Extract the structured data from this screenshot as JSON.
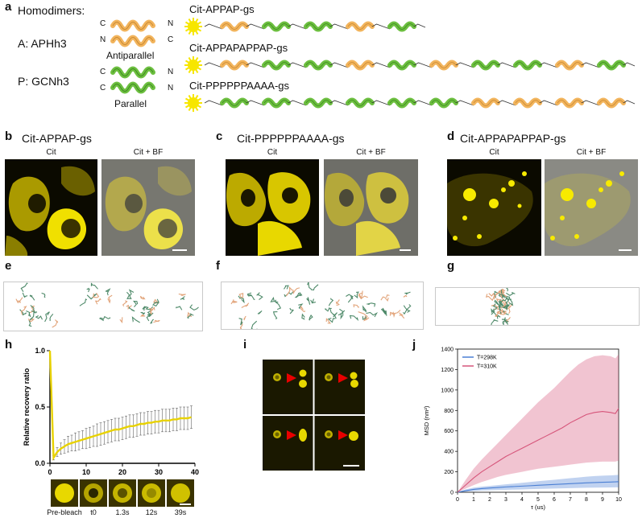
{
  "panel_a": {
    "label": "a",
    "homodimers_title": "Homodimers:",
    "dimer_a": "A: APHh3",
    "dimer_p": "P: GCNh3",
    "antiparallel": "Antiparallel",
    "parallel": "Parallel",
    "term_c": "C",
    "term_n": "N",
    "constructs": [
      "Cit-APPAP-gs",
      "Cit-APPAPAPPAP-gs",
      "Cit-PPPPPPAAAA-gs"
    ],
    "colors": {
      "apha": "#f2b45c",
      "gcn": "#6cbf3f",
      "citrine": "#f7e600"
    }
  },
  "panel_b": {
    "label": "b",
    "title": "Cit-APPAP-gs",
    "left": "Cit",
    "right": "Cit + BF"
  },
  "panel_c": {
    "label": "c",
    "title": "Cit-PPPPPPAAAA-gs",
    "left": "Cit",
    "right": "Cit + BF"
  },
  "panel_d": {
    "label": "d",
    "title": "Cit-APPAPAPPAP-gs",
    "left": "Cit",
    "right": "Cit + BF"
  },
  "panel_e": {
    "label": "e"
  },
  "panel_f": {
    "label": "f"
  },
  "panel_g": {
    "label": "g"
  },
  "panel_h": {
    "label": "h",
    "frames": [
      "Pre-bleach",
      "t0",
      "1.3s",
      "12s",
      "39s"
    ]
  },
  "panel_i": {
    "label": "i"
  },
  "panel_j": {
    "label": "j"
  },
  "chart_data": [
    {
      "type": "line",
      "panel": "h",
      "title": "",
      "xlabel": "",
      "ylabel": "Relative recovery ratio",
      "xlim": [
        0,
        40
      ],
      "ylim": [
        0,
        1.0
      ],
      "xticks": [
        "0",
        "10",
        "20",
        "30",
        "40"
      ],
      "yticks": [
        "0.0",
        "0.5",
        "1.0"
      ],
      "color": "#e8d200",
      "x": [
        0,
        1,
        2,
        3,
        4,
        5,
        6,
        7,
        8,
        9,
        10,
        11,
        12,
        13,
        14,
        15,
        16,
        17,
        18,
        19,
        20,
        21,
        22,
        23,
        24,
        25,
        26,
        27,
        28,
        29,
        30,
        31,
        32,
        33,
        34,
        35,
        36,
        37,
        38,
        39
      ],
      "values": [
        1.0,
        0.05,
        0.1,
        0.13,
        0.15,
        0.17,
        0.18,
        0.19,
        0.2,
        0.21,
        0.22,
        0.23,
        0.24,
        0.25,
        0.26,
        0.27,
        0.28,
        0.29,
        0.3,
        0.3,
        0.31,
        0.32,
        0.33,
        0.33,
        0.34,
        0.35,
        0.35,
        0.36,
        0.36,
        0.37,
        0.37,
        0.38,
        0.38,
        0.38,
        0.39,
        0.39,
        0.4,
        0.4,
        0.4,
        0.41
      ],
      "errors": [
        0.0,
        0.02,
        0.04,
        0.05,
        0.06,
        0.07,
        0.07,
        0.08,
        0.08,
        0.08,
        0.09,
        0.09,
        0.09,
        0.1,
        0.1,
        0.1,
        0.1,
        0.1,
        0.1,
        0.1,
        0.1,
        0.1,
        0.1,
        0.1,
        0.1,
        0.1,
        0.1,
        0.1,
        0.1,
        0.1,
        0.1,
        0.1,
        0.1,
        0.1,
        0.1,
        0.1,
        0.1,
        0.1,
        0.1,
        0.1
      ]
    },
    {
      "type": "area",
      "panel": "j",
      "title": "",
      "xlabel": "τ (us)",
      "ylabel": "MSD (nm²)",
      "xlim": [
        0,
        10
      ],
      "ylim": [
        0,
        1400
      ],
      "xticks": [
        "0",
        "1",
        "2",
        "3",
        "4",
        "5",
        "6",
        "7",
        "8",
        "9",
        "10"
      ],
      "yticks": [
        "0",
        "200",
        "400",
        "600",
        "800",
        "1000",
        "1200",
        "1400"
      ],
      "legend_position": "top-left",
      "x": [
        0,
        0.5,
        1,
        1.5,
        2,
        2.5,
        3,
        3.5,
        4,
        4.5,
        5,
        5.5,
        6,
        6.5,
        7,
        7.5,
        8,
        8.5,
        9,
        9.5,
        9.8,
        10
      ],
      "series": [
        {
          "name": "T=298K",
          "color": "#4a7fd4",
          "values": [
            0,
            15,
            28,
            36,
            42,
            47,
            52,
            56,
            60,
            64,
            68,
            72,
            76,
            80,
            84,
            88,
            92,
            95,
            98,
            100,
            102,
            104
          ],
          "lower": [
            0,
            5,
            12,
            18,
            20,
            22,
            24,
            26,
            28,
            30,
            32,
            34,
            36,
            38,
            40,
            42,
            44,
            45,
            46,
            47,
            48,
            48
          ],
          "upper": [
            0,
            28,
            45,
            55,
            62,
            70,
            78,
            85,
            92,
            100,
            108,
            115,
            122,
            130,
            138,
            145,
            152,
            158,
            162,
            165,
            168,
            170
          ]
        },
        {
          "name": "T=310K",
          "color": "#d6557a",
          "values": [
            0,
            70,
            140,
            200,
            250,
            300,
            350,
            390,
            430,
            470,
            510,
            550,
            590,
            630,
            680,
            720,
            760,
            780,
            790,
            780,
            770,
            820
          ],
          "lower": [
            0,
            35,
            70,
            100,
            125,
            150,
            170,
            185,
            200,
            215,
            230,
            240,
            250,
            260,
            270,
            280,
            290,
            295,
            300,
            300,
            300,
            310
          ],
          "upper": [
            0,
            120,
            230,
            320,
            400,
            480,
            560,
            640,
            720,
            800,
            880,
            950,
            1020,
            1100,
            1180,
            1250,
            1300,
            1330,
            1340,
            1330,
            1310,
            1350
          ]
        }
      ]
    }
  ]
}
